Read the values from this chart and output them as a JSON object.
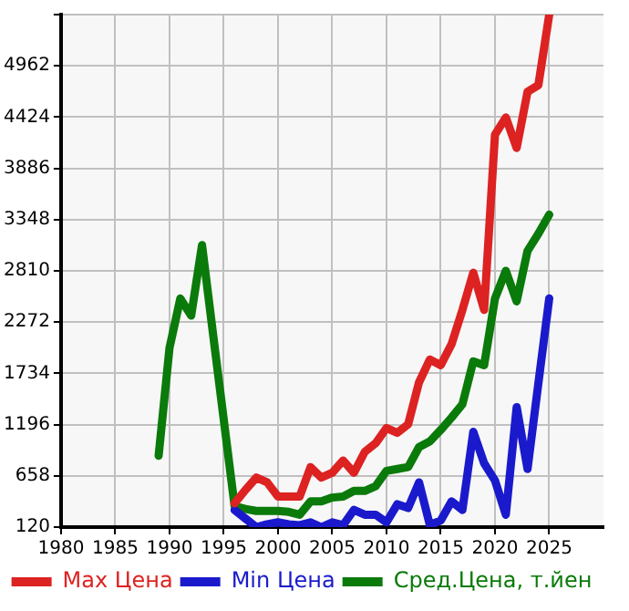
{
  "chart_data": {
    "type": "line",
    "x": [
      1989,
      1990,
      1991,
      1992,
      1993,
      1994,
      1995,
      1996,
      1997,
      1998,
      1999,
      2000,
      2001,
      2002,
      2003,
      2004,
      2005,
      2006,
      2007,
      2008,
      2009,
      2010,
      2011,
      2012,
      2013,
      2014,
      2015,
      2016,
      2017,
      2018,
      2019,
      2020,
      2021,
      2022,
      2023,
      2024,
      2025
    ],
    "series": [
      {
        "name": "Max Цена",
        "color": "#dd2222",
        "values": [
          null,
          null,
          null,
          null,
          null,
          null,
          null,
          370,
          510,
          640,
          590,
          440,
          440,
          440,
          750,
          640,
          690,
          820,
          690,
          910,
          1000,
          1160,
          1110,
          1200,
          1640,
          1880,
          1820,
          2040,
          2400,
          2790,
          2400,
          4240,
          4420,
          4100,
          4690,
          4760,
          5500
        ]
      },
      {
        "name": "Min Цена",
        "color": "#1a1acc",
        "values": [
          null,
          null,
          null,
          null,
          null,
          null,
          null,
          300,
          210,
          120,
          150,
          170,
          150,
          140,
          170,
          120,
          170,
          140,
          300,
          250,
          250,
          170,
          360,
          320,
          590,
          140,
          190,
          390,
          300,
          1120,
          790,
          610,
          250,
          1380,
          730,
          1630,
          2520
        ]
      },
      {
        "name": "Сред.Цена, т.йен",
        "color": "#0a7a0a",
        "values": [
          870,
          2000,
          2520,
          2340,
          3080,
          2160,
          1250,
          340,
          310,
          290,
          290,
          290,
          280,
          250,
          390,
          390,
          430,
          440,
          500,
          500,
          550,
          710,
          730,
          750,
          960,
          1020,
          1140,
          1270,
          1410,
          1860,
          1820,
          2520,
          2810,
          2490,
          3020,
          3200,
          3400
        ]
      }
    ],
    "xlim": [
      1980,
      2030
    ],
    "xticks": [
      1980,
      1985,
      1990,
      1995,
      2000,
      2005,
      2010,
      2015,
      2020,
      2025
    ],
    "ylim": [
      120,
      5500
    ],
    "yticks": [
      120,
      658,
      1196,
      1734,
      2272,
      2810,
      3348,
      3886,
      4424,
      4962,
      {
        "value": 5500,
        "label": null
      }
    ],
    "grid": true,
    "legend": "bottom",
    "marker": "none",
    "line_style": "solid"
  }
}
